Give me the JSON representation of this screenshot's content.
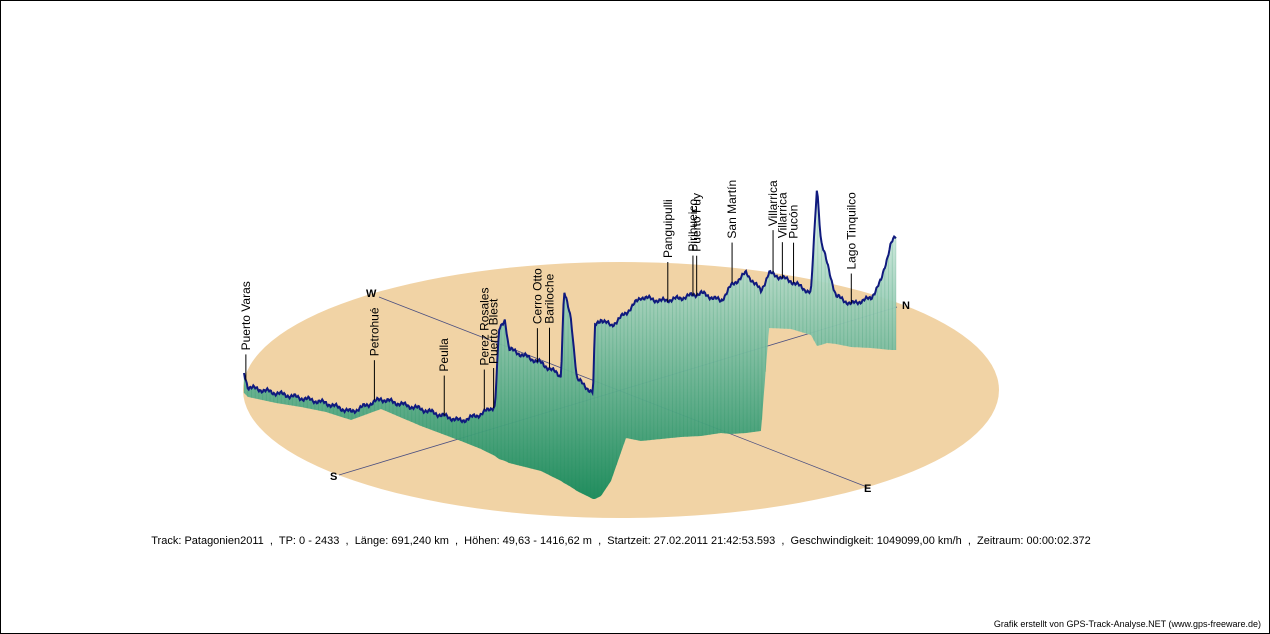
{
  "chart_data": {
    "type": "area",
    "style": "3d-elevation-profile-on-ellipse-base",
    "colors": {
      "base": "#f1d3a5",
      "profile_line": "#101a7e",
      "fill_top": "#e9f6ef",
      "fill_bottom": "#16895a",
      "axis": "#4b4f80"
    },
    "compass": {
      "north": "N",
      "south": "S",
      "east": "E",
      "west": "W"
    },
    "waypoints": [
      {
        "name": "Puerto Varas",
        "index": 2
      },
      {
        "name": "Petrohué",
        "index": 140
      },
      {
        "name": "Peulla",
        "index": 215
      },
      {
        "name": "Perez Rosales",
        "index": 258
      },
      {
        "name": "Puerto Blest",
        "index": 268
      },
      {
        "name": "Cerro Otto",
        "index": 315
      },
      {
        "name": "Bariloche",
        "index": 328
      },
      {
        "name": "Panguipulli",
        "index": 455
      },
      {
        "name": "Pirihueico",
        "index": 482
      },
      {
        "name": "Puerto Fuy",
        "index": 486
      },
      {
        "name": "San Martín",
        "index": 524
      },
      {
        "name": "Villarrica",
        "index": 568
      },
      {
        "name": "Villarrica",
        "index": 578
      },
      {
        "name": "Pucón",
        "index": 590
      },
      {
        "name": "Lago Tinquilco",
        "index": 652
      }
    ],
    "track": {
      "name": "Patagonien2011",
      "trackpoints": [
        0,
        2433
      ],
      "length_km": 691.24,
      "elevation_m": [
        49.63,
        1416.62
      ]
    }
  },
  "info_line": {
    "track": "Track: Patagonien2011",
    "tp": "TP: 0 - 2433",
    "length": "Länge: 691,240 km",
    "elevation": "Höhen: 49,63 - 1416,62 m",
    "start": "Startzeit: 27.02.2011 21:42:53.593",
    "speed": "Geschwindigkeit: 1049099,00 km/h",
    "period": "Zeitraum: 00:00:02.372"
  },
  "credit": "Grafik erstellt von GPS-Track-Analyse.NET (www.gps-freeware.de)"
}
